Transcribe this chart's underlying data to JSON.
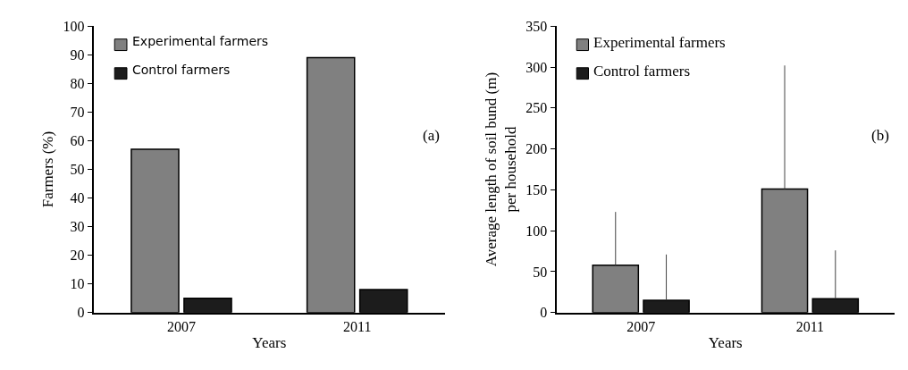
{
  "chart_data": [
    {
      "type": "bar",
      "categories": [
        "2007",
        "2011"
      ],
      "xlabel": "Years",
      "ylabel": "Farmers (%)",
      "ylim": [
        0,
        100
      ],
      "yticks": [
        0,
        10,
        20,
        30,
        40,
        50,
        60,
        70,
        80,
        90,
        100
      ],
      "legend": "top left",
      "annotations": [
        "(a)"
      ],
      "series": [
        {
          "name": "Experimental farmers",
          "color": "#808080",
          "values": [
            57,
            89
          ]
        },
        {
          "name": "Control farmers",
          "color": "#1c1c1c",
          "values": [
            5,
            8
          ]
        }
      ]
    },
    {
      "type": "bar",
      "categories": [
        "2007",
        "2011"
      ],
      "xlabel": "Years",
      "ylabel": "Average length of soil bund (m)\nper household",
      "ylim": [
        0,
        350
      ],
      "yticks": [
        0,
        50,
        100,
        150,
        200,
        250,
        300,
        350
      ],
      "legend": "top left",
      "annotations": [
        "(b)"
      ],
      "series": [
        {
          "name": "Experimental farmers",
          "color": "#808080",
          "values": [
            58,
            151
          ],
          "errors": [
            [
              58,
              123
            ],
            [
              151,
              302
            ]
          ]
        },
        {
          "name": "Control farmers",
          "color": "#1c1c1c",
          "values": [
            15,
            17
          ],
          "errors": [
            [
              15,
              71
            ],
            [
              17,
              76
            ]
          ]
        }
      ]
    }
  ]
}
